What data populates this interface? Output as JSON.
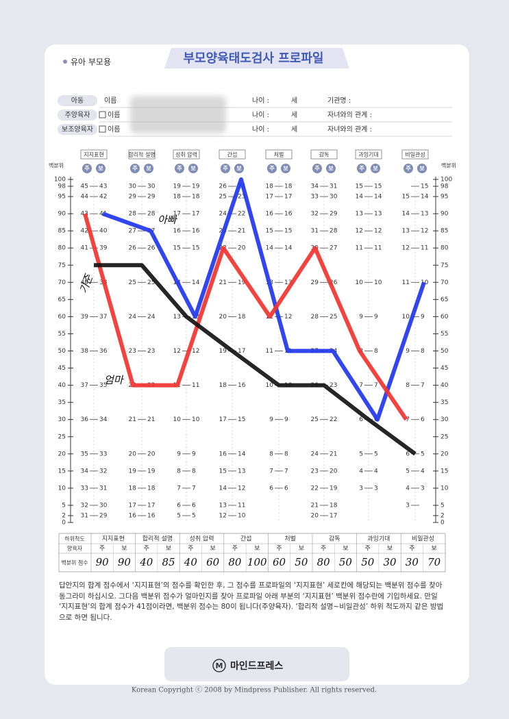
{
  "header": {
    "label": "유아 부모용",
    "title": "부모양육태도검사 프로파일"
  },
  "form": {
    "rows": [
      {
        "role": "아동",
        "fields": [
          "이름",
          "나이 :",
          "세",
          "기관명 :"
        ]
      },
      {
        "role": "주양육자",
        "fields": [
          "이름",
          "나이 :",
          "세",
          "자녀와의 관계 :"
        ]
      },
      {
        "role": "보조양육자",
        "fields": [
          "이름",
          "나이 :",
          "세",
          "자녀와의 관계 :"
        ]
      }
    ]
  },
  "chart_data": {
    "type": "line",
    "y_label": "백분위",
    "categories": [
      "지지표현",
      "합리적 설명",
      "성취 압력",
      "간섭",
      "처벌",
      "감독",
      "과잉기대",
      "비일관성"
    ],
    "sub_labels": [
      "주",
      "보"
    ],
    "ylim": [
      0,
      100
    ],
    "yticks": [
      0,
      2,
      5,
      10,
      15,
      20,
      25,
      30,
      35,
      40,
      45,
      50,
      55,
      60,
      65,
      70,
      75,
      80,
      85,
      90,
      95,
      98,
      100
    ],
    "series": [
      {
        "name": "아빠",
        "color": "#2136ee",
        "values": [
          90,
          85,
          60,
          100,
          50,
          50,
          30,
          70
        ]
      },
      {
        "name": "엄마",
        "color": "#f2332f",
        "values": [
          90,
          40,
          40,
          80,
          60,
          80,
          50,
          30
        ]
      },
      {
        "name": "기준",
        "color": "#141414",
        "values": [
          75,
          75,
          60,
          50,
          40,
          40,
          30,
          20
        ]
      }
    ],
    "score_levels": [
      98,
      95,
      90,
      85,
      80,
      70,
      60,
      50,
      40,
      30,
      20,
      15,
      10,
      5,
      2
    ],
    "score_table": [
      {
        "ju": [
          45,
          44,
          43,
          42,
          41,
          40,
          39,
          38,
          37,
          36,
          35,
          34,
          33,
          32,
          31
        ],
        "bo": [
          43,
          42,
          41,
          40,
          39,
          38,
          37,
          36,
          35,
          34,
          33,
          32,
          31,
          30,
          29
        ]
      },
      {
        "ju": [
          30,
          29,
          28,
          27,
          26,
          25,
          24,
          23,
          22,
          21,
          20,
          19,
          18,
          17,
          16
        ],
        "bo": [
          30,
          29,
          28,
          27,
          26,
          25,
          24,
          23,
          22,
          21,
          20,
          19,
          18,
          17,
          16
        ]
      },
      {
        "ju": [
          19,
          18,
          17,
          16,
          15,
          14,
          13,
          12,
          11,
          10,
          9,
          8,
          7,
          6,
          5
        ],
        "bo": [
          19,
          18,
          17,
          16,
          15,
          14,
          13,
          12,
          11,
          10,
          9,
          8,
          7,
          6,
          5
        ]
      },
      {
        "ju": [
          26,
          25,
          24,
          23,
          22,
          21,
          20,
          19,
          18,
          17,
          16,
          15,
          14,
          13,
          12
        ],
        "bo": [
          24,
          23,
          22,
          21,
          20,
          19,
          18,
          17,
          16,
          15,
          14,
          13,
          12,
          11,
          10
        ]
      },
      {
        "ju": [
          18,
          17,
          16,
          15,
          14,
          13,
          12,
          11,
          10,
          9,
          8,
          7,
          6,
          null,
          null
        ],
        "bo": [
          18,
          17,
          16,
          15,
          14,
          13,
          12,
          11,
          10,
          9,
          8,
          7,
          6,
          null,
          null
        ]
      },
      {
        "ju": [
          34,
          33,
          32,
          31,
          30,
          29,
          28,
          27,
          26,
          25,
          24,
          23,
          22,
          21,
          20
        ],
        "bo": [
          31,
          30,
          29,
          28,
          27,
          26,
          25,
          24,
          23,
          22,
          21,
          20,
          19,
          18,
          17
        ]
      },
      {
        "ju": [
          15,
          14,
          13,
          12,
          11,
          10,
          9,
          8,
          7,
          6,
          5,
          4,
          3,
          null,
          null
        ],
        "bo": [
          15,
          14,
          13,
          12,
          11,
          10,
          9,
          8,
          7,
          6,
          5,
          4,
          3,
          null,
          null
        ]
      },
      {
        "ju": [
          null,
          15,
          14,
          13,
          12,
          11,
          10,
          9,
          8,
          7,
          6,
          5,
          4,
          3,
          null
        ],
        "bo": [
          15,
          14,
          13,
          12,
          11,
          10,
          9,
          8,
          7,
          6,
          5,
          4,
          3,
          null,
          null
        ]
      }
    ]
  },
  "table": {
    "row_headers": [
      "하위척도",
      "양육자",
      "백분위 점수"
    ]
  },
  "instructions": "답안지의 합계 점수에서 ‘지지표현’의 점수를 확인한 후, 그 점수를 프로파일의 ‘지지표현’ 세로칸에 해당되는 백분위 점수를 찾아 동그라미 하십시오. 그다음 백분위 점수가 얼마인지를 찾아 프로파일 아래 부분의 ‘지지표현’ 백분위 점수란에 기입하세요. 만일 ‘지지표현’의 합계 점수가 41점이라면, 백분위 점수는 80이 됩니다(주양육자). ‘합리적 설명~비일관성’ 하위 척도까지 같은 방법으로 하면 됩니다.",
  "footer": {
    "brand": "마인드프레스",
    "copyright": "Korean Copyright ⓒ 2008 by Mindpress Publisher. All rights reserved."
  }
}
